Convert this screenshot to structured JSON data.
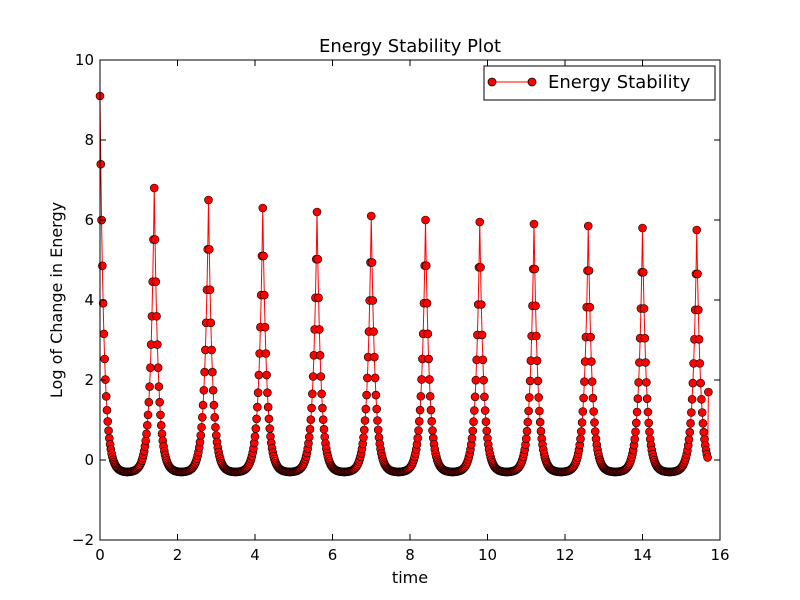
{
  "chart_data": {
    "type": "line",
    "title": "Energy Stability Plot",
    "xlabel": "time",
    "ylabel": "Log of Change in Energy",
    "xlim": [
      0,
      16
    ],
    "ylim": [
      -2,
      10
    ],
    "xticks": [
      0,
      2,
      4,
      6,
      8,
      10,
      12,
      14,
      16
    ],
    "yticks": [
      -2,
      0,
      2,
      4,
      6,
      8,
      10
    ],
    "grid": false,
    "legend": "top-right",
    "series": [
      {
        "name": "Energy Stability",
        "color": "#ff0000",
        "marker": "circle",
        "x_start": 0.0,
        "x_step": 0.02,
        "x_end": 15.7,
        "period": 1.4,
        "peaks": [
          9.1,
          6.8,
          6.5,
          6.3,
          6.2,
          6.1,
          6.0,
          5.95,
          5.9,
          5.85,
          5.8,
          5.75
        ],
        "trough": -0.3,
        "final_value": 1.7
      }
    ]
  }
}
